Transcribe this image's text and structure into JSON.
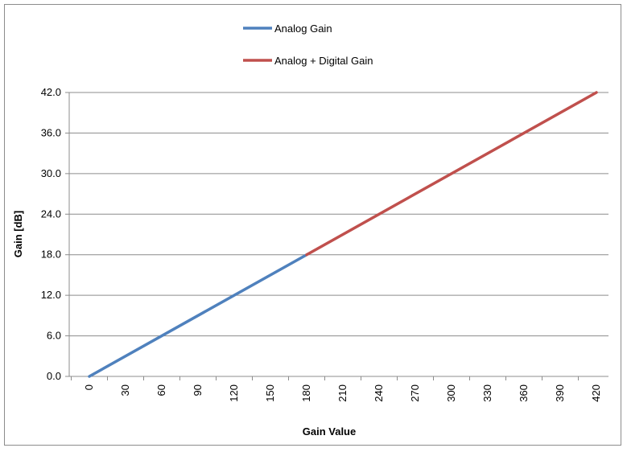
{
  "chart_data": {
    "type": "line",
    "xlabel": "Gain Value",
    "ylabel": "Gain [dB]",
    "xlim": [
      0,
      420
    ],
    "ylim": [
      0,
      42
    ],
    "x_ticks": [
      "0",
      "30",
      "60",
      "90",
      "120",
      "150",
      "180",
      "210",
      "240",
      "270",
      "300",
      "330",
      "360",
      "390",
      "420"
    ],
    "y_ticks": [
      "0.0",
      "6.0",
      "12.0",
      "18.0",
      "24.0",
      "30.0",
      "36.0",
      "42.0"
    ],
    "grid": "horizontal",
    "legend_position": "top",
    "series": [
      {
        "name": "Analog Gain",
        "color": "#4F81BD",
        "x": [
          0,
          180
        ],
        "y": [
          0,
          18
        ]
      },
      {
        "name": "Analog + Digital Gain",
        "color": "#C0504D",
        "x": [
          180,
          420
        ],
        "y": [
          18,
          42
        ]
      }
    ]
  }
}
